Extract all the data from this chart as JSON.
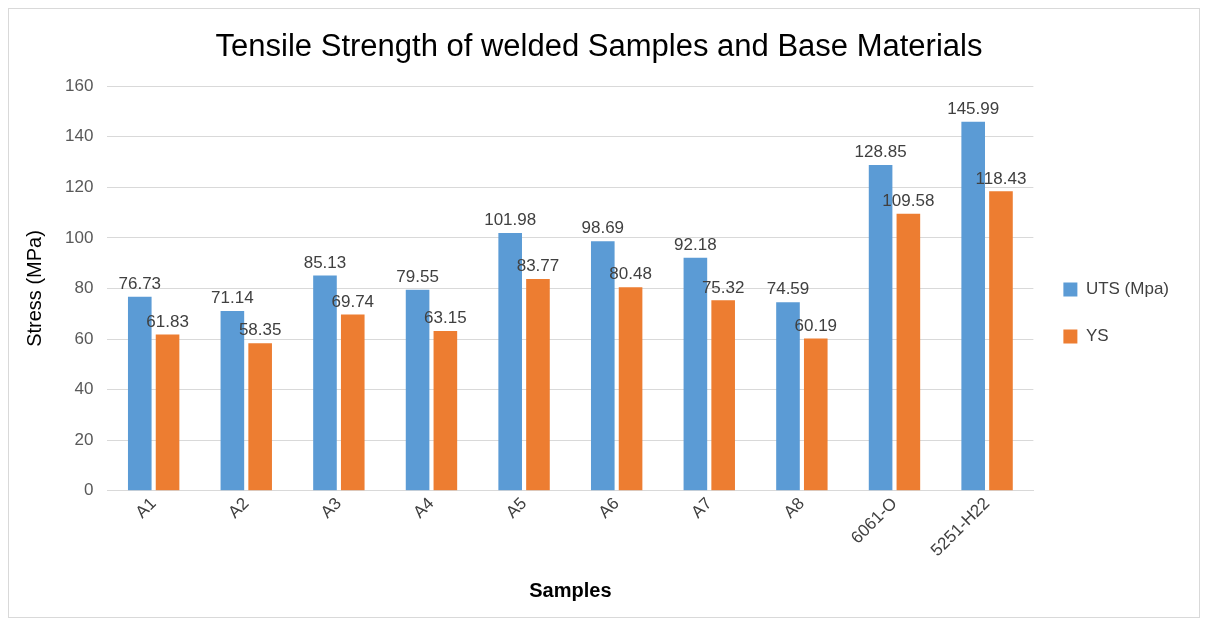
{
  "chart_data": {
    "type": "bar",
    "title": "Tensile Strength of welded Samples and Base Materials",
    "xlabel": "Samples",
    "ylabel": "Stress (MPa)",
    "categories": [
      "A1",
      "A2",
      "A3",
      "A4",
      "A5",
      "A6",
      "A7",
      "A8",
      "6061-O",
      "5251-H22"
    ],
    "series": [
      {
        "name": "UTS (Mpa)",
        "color": "#5b9bd5",
        "values": [
          76.73,
          71.14,
          85.13,
          79.55,
          101.98,
          98.69,
          92.18,
          74.59,
          128.85,
          145.99
        ]
      },
      {
        "name": "YS",
        "color": "#ed7d31",
        "values": [
          61.83,
          58.35,
          69.74,
          63.15,
          83.77,
          80.48,
          75.32,
          60.19,
          109.58,
          118.43
        ]
      }
    ],
    "ylim": [
      0,
      160
    ],
    "yticks": [
      0,
      20,
      40,
      60,
      80,
      100,
      120,
      140,
      160
    ],
    "grid": "y",
    "legend": "right",
    "data_labels": true
  }
}
